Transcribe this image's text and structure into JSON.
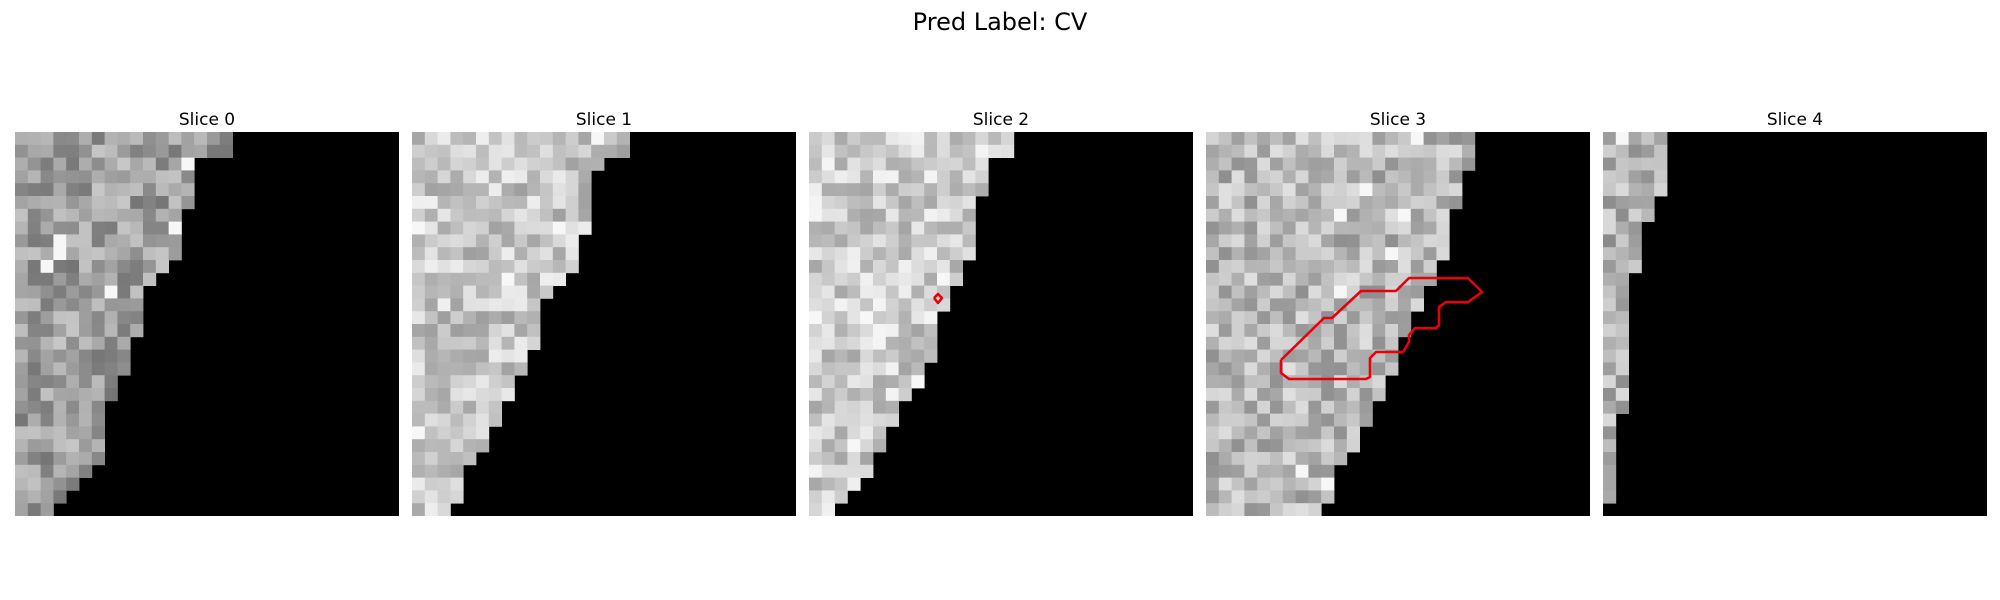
{
  "figure": {
    "title": "Pred Label: CV",
    "slices": [
      {
        "title": "Slice 0"
      },
      {
        "title": "Slice 1"
      },
      {
        "title": "Slice 2"
      },
      {
        "title": "Slice 3"
      },
      {
        "title": "Slice 4"
      }
    ],
    "overlay_color": "#e8000b",
    "image_background": "#000000"
  }
}
